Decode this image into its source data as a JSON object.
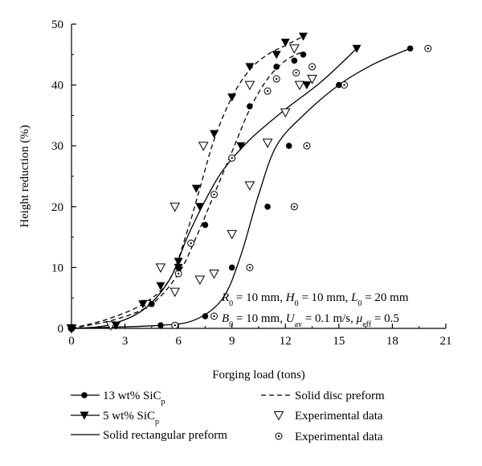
{
  "chart_data": {
    "type": "scatter",
    "xlabel": "Forging load (tons)",
    "ylabel": "Height reduction (%)",
    "xlim": [
      0,
      21
    ],
    "ylim": [
      0,
      50
    ],
    "xticks": [
      0,
      3,
      6,
      9,
      12,
      15,
      18,
      21
    ],
    "yticks": [
      0,
      10,
      20,
      30,
      40,
      50
    ],
    "grid": false,
    "annotations": [
      {
        "id": "ann1",
        "text": "R0 = 10 mm, H0 = 10 mm, L0 = 20 mm",
        "parts": [
          [
            "R",
            "i"
          ],
          [
            "0",
            "sub"
          ],
          [
            " = 10 mm, ",
            "n"
          ],
          [
            "H",
            "i"
          ],
          [
            "0",
            "sub"
          ],
          [
            " = 10 mm, ",
            "n"
          ],
          [
            "L",
            "i"
          ],
          [
            "0",
            "sub"
          ],
          [
            " = 20 mm",
            "n"
          ]
        ]
      },
      {
        "id": "ann2",
        "text": "B0 = 10 mm, Uav = 0.1 m/s, μeff = 0.5",
        "parts": [
          [
            "B",
            "i"
          ],
          [
            "0",
            "sub"
          ],
          [
            " = 10 mm, ",
            "n"
          ],
          [
            "U",
            "i"
          ],
          [
            "av",
            "sub"
          ],
          [
            " = 0.1 m/s, ",
            "n"
          ],
          [
            "μ",
            "i"
          ],
          [
            "eff",
            "sub"
          ],
          [
            " = 0.5",
            "n"
          ]
        ]
      }
    ],
    "series": [
      {
        "name": "13 wt% SiCp, Solid rectangular preform",
        "marker": "circle-filled",
        "line": "solid",
        "points": [
          [
            0,
            0
          ],
          [
            5,
            0.5
          ],
          [
            7.5,
            2
          ],
          [
            9,
            10
          ],
          [
            11,
            20
          ],
          [
            12.2,
            30
          ],
          [
            15,
            40
          ],
          [
            19,
            46
          ]
        ]
      },
      {
        "name": "13 wt% SiCp, Solid disc preform",
        "marker": "circle-filled",
        "line": "dashed",
        "points": [
          [
            0,
            0
          ],
          [
            4.5,
            4
          ],
          [
            6,
            10
          ],
          [
            7.5,
            17
          ],
          [
            10,
            36.5
          ],
          [
            11.5,
            43
          ],
          [
            12.5,
            44
          ],
          [
            13,
            45
          ]
        ]
      },
      {
        "name": "5 wt% SiCp, Solid rectangular preform",
        "marker": "triangle-down-filled",
        "line": "solid",
        "points": [
          [
            0,
            0
          ],
          [
            2.5,
            0.5
          ],
          [
            4,
            4
          ],
          [
            6,
            11
          ],
          [
            7.2,
            20
          ],
          [
            9.5,
            30
          ],
          [
            13.2,
            40
          ],
          [
            16,
            46
          ]
        ]
      },
      {
        "name": "5 wt% SiCp, Solid disc preform",
        "marker": "triangle-down-filled",
        "line": "dashed",
        "points": [
          [
            0,
            0
          ],
          [
            5,
            7
          ],
          [
            6,
            10
          ],
          [
            7,
            23
          ],
          [
            8,
            32
          ],
          [
            9,
            38
          ],
          [
            10,
            43
          ],
          [
            11.5,
            45
          ],
          [
            12,
            47
          ],
          [
            13,
            48
          ]
        ]
      },
      {
        "name": "Experimental data (5 wt% SiCp)",
        "marker": "triangle-down-open",
        "line": "none",
        "points": [
          [
            0,
            0
          ],
          [
            2.2,
            0.5
          ],
          [
            4.2,
            4
          ],
          [
            5,
            10
          ],
          [
            5.8,
            6
          ],
          [
            5.8,
            20
          ],
          [
            7.2,
            8
          ],
          [
            7.4,
            30
          ],
          [
            8,
            9
          ],
          [
            9,
            15.5
          ],
          [
            10,
            23.5
          ],
          [
            10,
            40
          ],
          [
            11,
            30.5
          ],
          [
            12,
            35.5
          ],
          [
            12.5,
            46
          ],
          [
            12.8,
            40
          ],
          [
            13.5,
            41
          ]
        ]
      },
      {
        "name": "Experimental data (13 wt% SiCp)",
        "marker": "circle-dotted",
        "line": "none",
        "points": [
          [
            0,
            0
          ],
          [
            5.8,
            0.5
          ],
          [
            6,
            9
          ],
          [
            6.7,
            14
          ],
          [
            8,
            2
          ],
          [
            8,
            22
          ],
          [
            9,
            28
          ],
          [
            10,
            10
          ],
          [
            11,
            39
          ],
          [
            11.5,
            41
          ],
          [
            12.5,
            20
          ],
          [
            12.6,
            42
          ],
          [
            13.2,
            30
          ],
          [
            13.5,
            43
          ],
          [
            15.3,
            40
          ],
          [
            20,
            46
          ]
        ]
      }
    ],
    "curves": [
      {
        "id": "rect-13",
        "style": "solid",
        "points": [
          [
            0,
            0
          ],
          [
            5,
            0.5
          ],
          [
            7,
            1.5
          ],
          [
            8.5,
            5
          ],
          [
            9.5,
            12
          ],
          [
            10.5,
            22
          ],
          [
            11.5,
            30
          ],
          [
            13,
            35
          ],
          [
            15,
            40
          ],
          [
            17,
            43.5
          ],
          [
            19,
            46
          ]
        ]
      },
      {
        "id": "rect-5",
        "style": "solid",
        "points": [
          [
            0,
            0
          ],
          [
            2,
            0.5
          ],
          [
            4,
            3
          ],
          [
            5.5,
            8
          ],
          [
            6.5,
            15
          ],
          [
            7.5,
            21
          ],
          [
            8.5,
            26
          ],
          [
            10,
            31
          ],
          [
            12,
            36
          ],
          [
            14,
            40.5
          ],
          [
            16,
            46
          ]
        ]
      },
      {
        "id": "disc-13",
        "style": "dashed",
        "points": [
          [
            0,
            0
          ],
          [
            2.5,
            1.5
          ],
          [
            4.5,
            4
          ],
          [
            6,
            9
          ],
          [
            7,
            15
          ],
          [
            8,
            22
          ],
          [
            9,
            29
          ],
          [
            10,
            36
          ],
          [
            11,
            41
          ],
          [
            12,
            44
          ],
          [
            13,
            45.5
          ]
        ]
      },
      {
        "id": "disc-5",
        "style": "dashed",
        "points": [
          [
            0,
            0
          ],
          [
            2,
            1.5
          ],
          [
            4,
            4
          ],
          [
            5.5,
            8
          ],
          [
            6.5,
            16
          ],
          [
            7.2,
            23
          ],
          [
            8,
            31
          ],
          [
            9,
            38
          ],
          [
            10,
            42.5
          ],
          [
            11,
            45
          ],
          [
            12,
            46.5
          ],
          [
            13,
            48
          ]
        ]
      }
    ],
    "legend": {
      "placement": "bottom",
      "items": [
        {
          "id": "leg-13wt",
          "text": "13 wt% SiC",
          "sub": "p",
          "symbol": "line-circle-filled"
        },
        {
          "id": "leg-disc",
          "text": "Solid disc preform",
          "sub": "",
          "symbol": "dashed-line"
        },
        {
          "id": "leg-5wt",
          "text": "5 wt% SiC",
          "sub": "p",
          "symbol": "line-triangle-down-filled"
        },
        {
          "id": "leg-exp-tri",
          "text": "Experimental data",
          "sub": "",
          "symbol": "triangle-down-open"
        },
        {
          "id": "leg-rect",
          "text": "Solid rectangular preform",
          "sub": "",
          "symbol": "solid-line"
        },
        {
          "id": "leg-exp-circ",
          "text": "Experimental data",
          "sub": "",
          "symbol": "circle-dotted"
        }
      ]
    }
  }
}
